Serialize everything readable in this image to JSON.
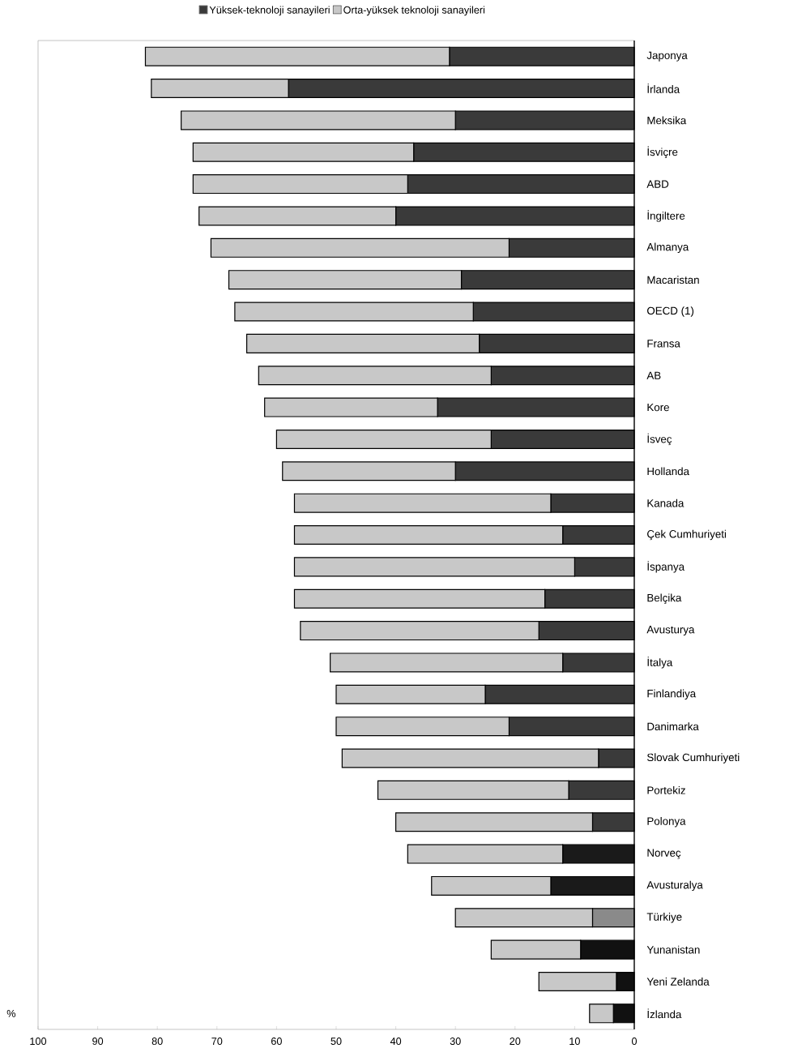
{
  "chart_data": {
    "type": "bar",
    "orientation": "horizontal",
    "stacked": true,
    "legend": "top",
    "categories": [
      "Japonya",
      "İrlanda",
      "Meksika",
      "İsviçre",
      "ABD",
      "İngiltere",
      "Almanya",
      "Macaristan",
      "OECD (1)",
      "Fransa",
      "AB",
      "Kore",
      "İsveç",
      "Hollanda",
      "Kanada",
      "Çek Cumhuriyeti",
      "İspanya",
      "Belçika",
      "Avusturya",
      "İtalya",
      "Finlandiya",
      "Danimarka",
      "Slovak Cumhuriyeti",
      "Portekiz",
      "Polonya",
      "Norveç",
      "Avusturalya",
      "Türkiye",
      "Yunanistan",
      "Yeni Zelanda",
      "İzlanda"
    ],
    "series": [
      {
        "name": "Yüksek-teknoloji sanayileri",
        "color": "#3a3a3a",
        "colors": [
          "#3a3a3a",
          "#3a3a3a",
          "#3a3a3a",
          "#3a3a3a",
          "#3a3a3a",
          "#3a3a3a",
          "#3a3a3a",
          "#3a3a3a",
          "#3a3a3a",
          "#3a3a3a",
          "#3a3a3a",
          "#3a3a3a",
          "#3a3a3a",
          "#3a3a3a",
          "#3a3a3a",
          "#3a3a3a",
          "#3a3a3a",
          "#3a3a3a",
          "#3a3a3a",
          "#3a3a3a",
          "#3a3a3a",
          "#3a3a3a",
          "#3a3a3a",
          "#3a3a3a",
          "#3a3a3a",
          "#1a1a1a",
          "#1a1a1a",
          "#8a8a8a",
          "#111111",
          "#111111",
          "#111111"
        ],
        "values": [
          31,
          58,
          30,
          37,
          38,
          40,
          21,
          29,
          27,
          26,
          24,
          33,
          24,
          30,
          14,
          12,
          10,
          15,
          16,
          12,
          25,
          21,
          6,
          11,
          7,
          12,
          14,
          7,
          9,
          3,
          3.5
        ]
      },
      {
        "name": "Orta-yüksek teknoloji sanayileri",
        "color": "#c8c8c8",
        "values": [
          51,
          23,
          46,
          37,
          36,
          33,
          50,
          39,
          40,
          39,
          39,
          29,
          36,
          29,
          43,
          45,
          47,
          42,
          40,
          39,
          25,
          29,
          43,
          32,
          33,
          26,
          20,
          23,
          15,
          13,
          4
        ]
      }
    ],
    "xlabel": "%",
    "xlim": [
      100,
      0
    ],
    "xticks": [
      100,
      90,
      80,
      70,
      60,
      50,
      40,
      30,
      20,
      10,
      0
    ]
  }
}
